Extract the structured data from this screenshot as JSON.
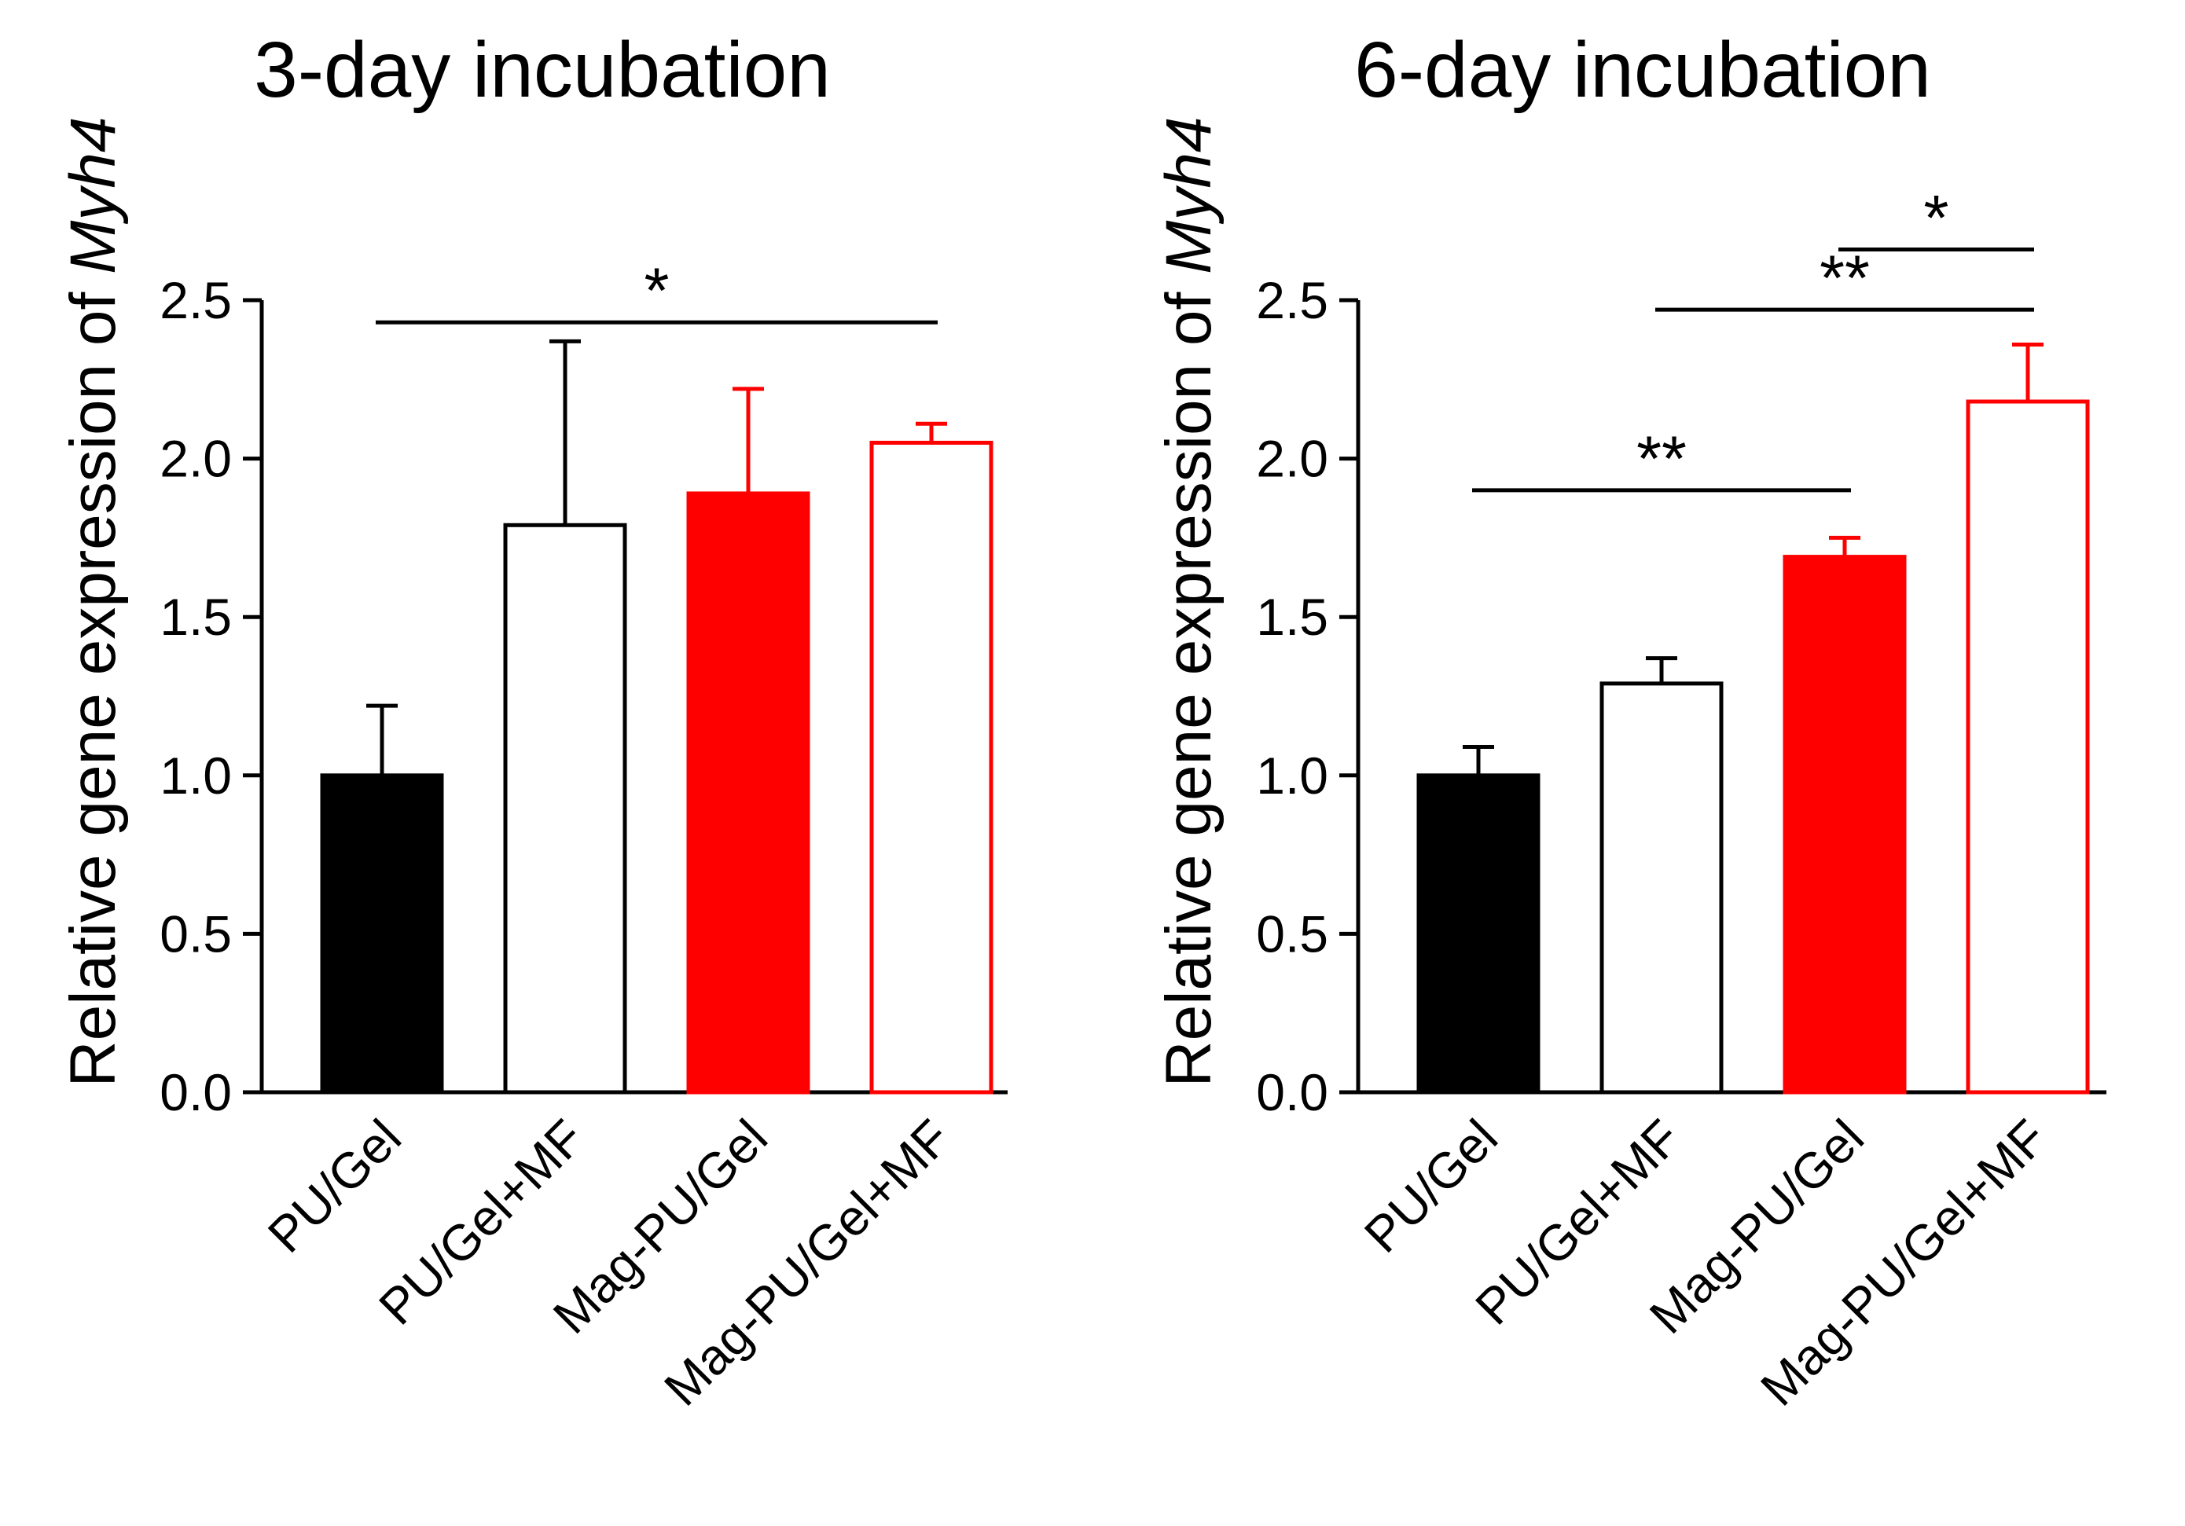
{
  "chart_data": [
    {
      "type": "bar",
      "title": "3-day incubation",
      "ylabel_prefix": "Relative gene expression of ",
      "ylabel_gene": "Myh4",
      "xlabel": "",
      "ylim": [
        0,
        2.5
      ],
      "yticks": [
        "0.0",
        "0.5",
        "1.0",
        "1.5",
        "2.0",
        "2.5"
      ],
      "categories": [
        "PU/Gel",
        "PU/Gel+MF",
        "Mag-PU/Gel",
        "Mag-PU/Gel+MF"
      ],
      "values": [
        1.0,
        1.79,
        1.89,
        2.05
      ],
      "error_upper": [
        0.22,
        0.58,
        0.33,
        0.06
      ],
      "bar_styles": [
        {
          "fill": "#000000",
          "stroke": "#000000"
        },
        {
          "fill": "#ffffff",
          "stroke": "#000000"
        },
        {
          "fill": "#ff0000",
          "stroke": "#ff0000"
        },
        {
          "fill": "#ffffff",
          "stroke": "#ff0000"
        }
      ],
      "significance": [
        {
          "from": 0,
          "to": 3,
          "label": "*",
          "y": 2.43
        }
      ]
    },
    {
      "type": "bar",
      "title": "6-day incubation",
      "ylabel_prefix": "Relative gene expression of ",
      "ylabel_gene": "Myh4",
      "xlabel": "",
      "ylim": [
        0,
        2.5
      ],
      "yticks": [
        "0.0",
        "0.5",
        "1.0",
        "1.5",
        "2.0",
        "2.5"
      ],
      "categories": [
        "PU/Gel",
        "PU/Gel+MF",
        "Mag-PU/Gel",
        "Mag-PU/Gel+MF"
      ],
      "values": [
        1.0,
        1.29,
        1.69,
        2.18
      ],
      "error_upper": [
        0.09,
        0.08,
        0.06,
        0.18
      ],
      "bar_styles": [
        {
          "fill": "#000000",
          "stroke": "#000000"
        },
        {
          "fill": "#ffffff",
          "stroke": "#000000"
        },
        {
          "fill": "#ff0000",
          "stroke": "#ff0000"
        },
        {
          "fill": "#ffffff",
          "stroke": "#ff0000"
        }
      ],
      "significance": [
        {
          "from": 0,
          "to": 2,
          "label": "**",
          "y": 1.9
        },
        {
          "from": 1,
          "to": 3,
          "label": "**",
          "y": 2.47
        },
        {
          "from": 2,
          "to": 3,
          "label": "*",
          "y": 2.66
        }
      ]
    }
  ]
}
